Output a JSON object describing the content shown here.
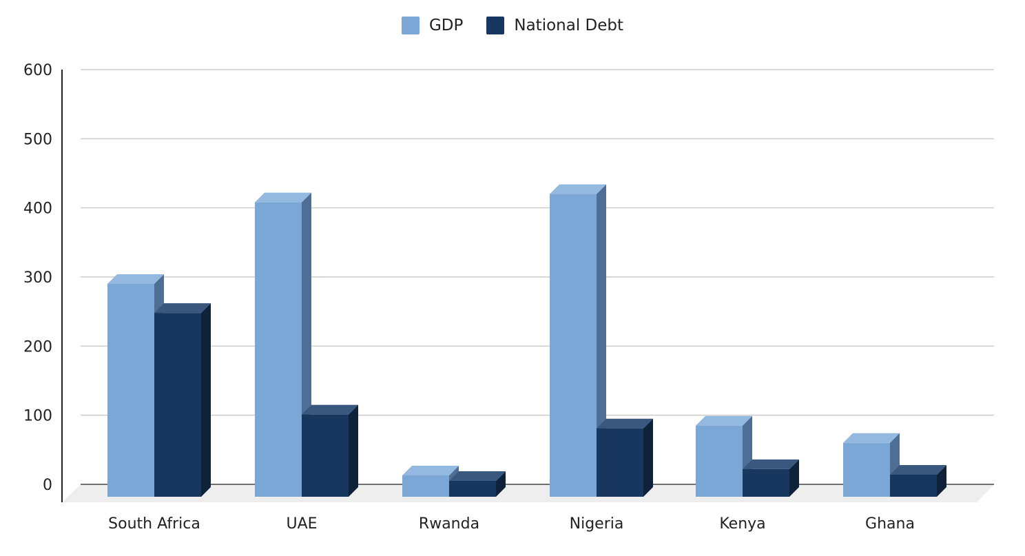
{
  "chart_data": {
    "type": "bar",
    "title": "",
    "xlabel": "",
    "ylabel": "",
    "categories": [
      "South Africa",
      "UAE",
      "Rwanda",
      "Nigeria",
      "Kenya",
      "Ghana"
    ],
    "series": [
      {
        "name": "GDP",
        "values": [
          290,
          408,
          13,
          420,
          85,
          60
        ],
        "color": "#7ba7d7",
        "top_color": "#94b9e1",
        "side_color": "#4e6f93"
      },
      {
        "name": "National Debt",
        "values": [
          248,
          101,
          5,
          81,
          22,
          14
        ],
        "color": "#17375e",
        "top_color": "#3a587e",
        "side_color": "#0e2339"
      }
    ],
    "ylim": [
      0,
      600
    ],
    "yticks": [
      0,
      100,
      200,
      300,
      400,
      500,
      600
    ],
    "grid": true,
    "legend_position": "top-center"
  },
  "legend": {
    "items": [
      {
        "label": "GDP",
        "color": "#7ba7d7"
      },
      {
        "label": "National Debt",
        "color": "#17375e"
      }
    ]
  }
}
